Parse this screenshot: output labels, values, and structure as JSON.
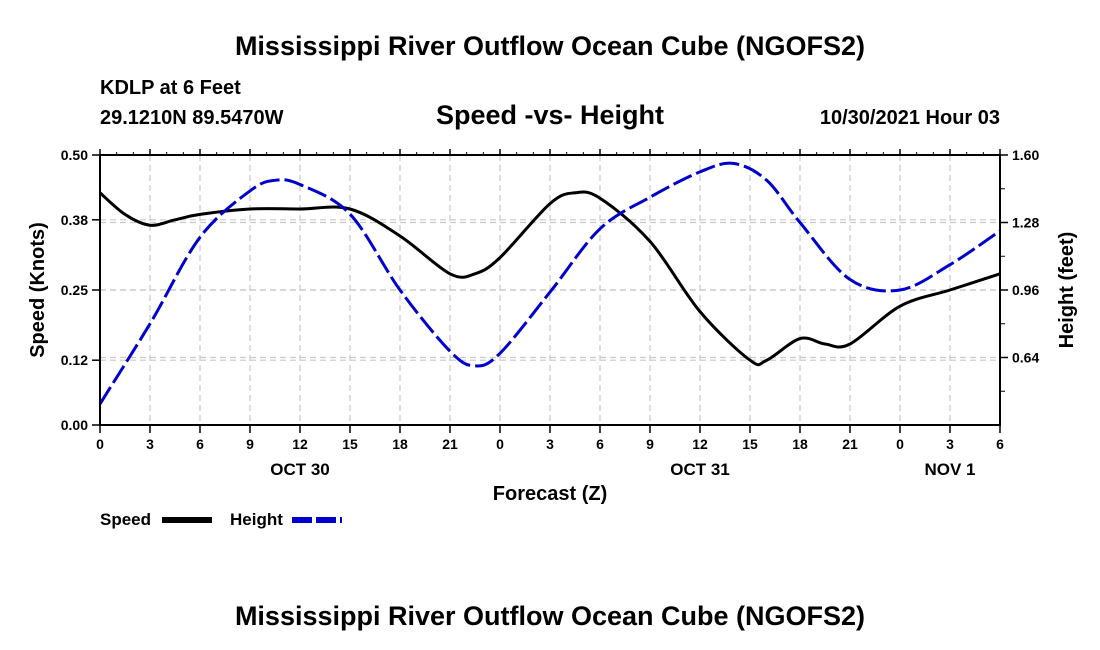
{
  "page_title": "Mississippi River Outflow Ocean Cube (NGOFS2)",
  "footer_title": "Mississippi River Outflow Ocean Cube (NGOFS2)",
  "station": {
    "name": "KDLP at 6 Feet",
    "coords": "29.1210N  89.5470W",
    "datetime": "10/30/2021 Hour 03"
  },
  "chart_data": {
    "type": "line",
    "title": "Speed -vs- Height",
    "xlabel": "Forecast (Z)",
    "ylabel": "Speed (Knots)",
    "y2label": "Height (feet)",
    "x_ticks": [
      {
        "h": 0,
        "label": "0"
      },
      {
        "h": 3,
        "label": "3"
      },
      {
        "h": 6,
        "label": "6"
      },
      {
        "h": 9,
        "label": "9"
      },
      {
        "h": 12,
        "label": "12"
      },
      {
        "h": 15,
        "label": "15"
      },
      {
        "h": 18,
        "label": "18"
      },
      {
        "h": 21,
        "label": "21"
      },
      {
        "h": 24,
        "label": "0"
      },
      {
        "h": 27,
        "label": "3"
      },
      {
        "h": 30,
        "label": "6"
      },
      {
        "h": 33,
        "label": "9"
      },
      {
        "h": 36,
        "label": "12"
      },
      {
        "h": 39,
        "label": "15"
      },
      {
        "h": 42,
        "label": "18"
      },
      {
        "h": 45,
        "label": "21"
      },
      {
        "h": 48,
        "label": "0"
      },
      {
        "h": 51,
        "label": "3"
      },
      {
        "h": 54,
        "label": "6"
      }
    ],
    "date_labels": [
      {
        "h": 12,
        "label": "OCT 30"
      },
      {
        "h": 36,
        "label": "OCT 31"
      },
      {
        "h": 51,
        "label": "NOV 1"
      }
    ],
    "xlim": [
      0,
      54
    ],
    "ylim": [
      0,
      0.5
    ],
    "y_ticks": [
      0.0,
      0.12,
      0.25,
      0.38,
      0.5
    ],
    "y_tick_labels": [
      "0.00",
      "0.12",
      "0.25",
      "0.38",
      "0.50"
    ],
    "y2lim": [
      0.32,
      1.6
    ],
    "y2_ticks": [
      0.64,
      0.96,
      1.28,
      1.6
    ],
    "y2_tick_labels": [
      "0.64",
      "0.96",
      "1.28",
      "1.60"
    ],
    "grid": true,
    "legend": "bottom-left",
    "series": [
      {
        "name": "Speed",
        "axis": "left",
        "color": "#000000",
        "style": "solid",
        "x": [
          0,
          1.5,
          3,
          4.5,
          6,
          9,
          12,
          15,
          18,
          21,
          22.5,
          24,
          27,
          28.5,
          30,
          33,
          36,
          39,
          40,
          42,
          43.5,
          45,
          48,
          51,
          54
        ],
        "y": [
          0.43,
          0.39,
          0.37,
          0.38,
          0.39,
          0.4,
          0.4,
          0.4,
          0.35,
          0.28,
          0.28,
          0.31,
          0.41,
          0.43,
          0.42,
          0.34,
          0.21,
          0.12,
          0.12,
          0.16,
          0.15,
          0.15,
          0.22,
          0.25,
          0.28
        ]
      },
      {
        "name": "Height",
        "axis": "right",
        "color": "#0000cc",
        "style": "dashed",
        "x": [
          0,
          3,
          6,
          9,
          10.5,
          12,
          15,
          18,
          21,
          22.5,
          24,
          27,
          30,
          33,
          36,
          38,
          40,
          42,
          45,
          48,
          51,
          54
        ],
        "y": [
          0.42,
          0.8,
          1.21,
          1.43,
          1.48,
          1.46,
          1.32,
          0.96,
          0.67,
          0.6,
          0.66,
          0.95,
          1.25,
          1.4,
          1.52,
          1.56,
          1.48,
          1.28,
          1.01,
          0.96,
          1.08,
          1.24
        ]
      }
    ]
  },
  "legend_items": [
    {
      "label": "Speed"
    },
    {
      "label": "Height"
    }
  ]
}
